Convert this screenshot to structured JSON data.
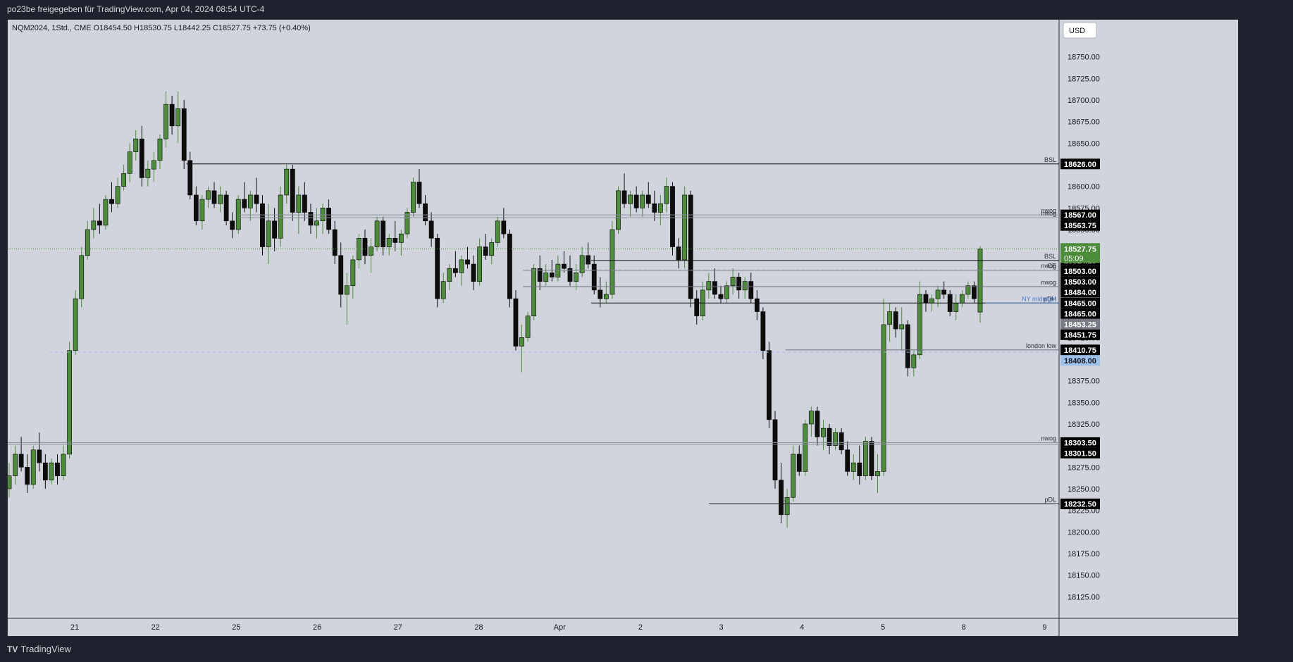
{
  "header": {
    "title": "po23be freigegeben für TradingView.com, Apr 04, 2024 08:54 UTC-4"
  },
  "footer": {
    "brand": "TradingView"
  },
  "chart_data": {
    "type": "candlestick",
    "symbol_line": "NQM2024, 1Std., CME  O18454.50  H18530.75  L18442.25  C18527.75  +73.75 (+0.40%)",
    "currency": "USD",
    "ylim": [
      18100,
      18775
    ],
    "y_ticks": [
      18125,
      18150,
      18175,
      18200,
      18225,
      18250,
      18275,
      18300,
      18325,
      18350,
      18375,
      18400,
      18425,
      18450,
      18475,
      18500,
      18525,
      18550,
      18575,
      18600,
      18625,
      18650,
      18675,
      18700,
      18725,
      18750
    ],
    "x_ticks": [
      "21",
      "22",
      "25",
      "26",
      "27",
      "28",
      "Apr",
      "2",
      "3",
      "4",
      "5",
      "8",
      "9"
    ],
    "colors": {
      "up": "#4c8c3b",
      "down": "#0d0d0d",
      "background": "#d1d4dc",
      "current_price": "#4c8c3b",
      "blue_level": "#9ec1ea"
    },
    "last_price": {
      "value": 18527.75,
      "label": "18527.75",
      "countdown": "05:09"
    },
    "levels": [
      {
        "price": 18626.0,
        "label": "18626.00",
        "tag": "BSL",
        "style": "solid",
        "from": 0.17,
        "to": 1.0
      },
      {
        "price": 18567.0,
        "label": "18567.00",
        "tag": "nwog",
        "style": "grey",
        "from": 0.22,
        "to": 1.0
      },
      {
        "price": 18563.75,
        "label": "18563.75",
        "tag": "nwog",
        "style": "grey",
        "from": 0.22,
        "to": 1.0
      },
      {
        "price": 18514.25,
        "label": "18514.25",
        "tag": "BSL",
        "style": "solid",
        "from": 0.555,
        "to": 1.0
      },
      {
        "price": 18503.0,
        "label": "18503.00",
        "tag": "nwog",
        "style": "greysolid",
        "from": 0.49,
        "to": 1.0
      },
      {
        "price": 18503.0,
        "label": "18503.00",
        "tag": "CE",
        "style": "dash",
        "from": 0.49,
        "to": 1.0
      },
      {
        "price": 18484.0,
        "label": "18484.00",
        "tag": "nwog",
        "style": "greysolid",
        "from": 0.49,
        "to": 1.0
      },
      {
        "price": 18465.0,
        "label": "18465.00",
        "tag": "pDH",
        "style": "solid",
        "from": 0.555,
        "to": 1.0
      },
      {
        "price": 18465.0,
        "label": "18465.00",
        "tag": "NY midnight",
        "style": "blue",
        "from": 0.93,
        "to": 1.0
      },
      {
        "price": 18453.25,
        "label": "18453.25",
        "tag": "",
        "style": "none",
        "from": 0,
        "to": 0
      },
      {
        "price": 18451.75,
        "label": "18451.75",
        "tag": "",
        "style": "none",
        "from": 0,
        "to": 0
      },
      {
        "price": 18410.75,
        "label": "18410.75",
        "tag": "london low",
        "style": "thin",
        "from": 0.74,
        "to": 1.0
      },
      {
        "price": 18408.0,
        "label": "18408.00",
        "tag": "",
        "style": "bluedash",
        "from": 0.04,
        "to": 1.0
      },
      {
        "price": 18303.5,
        "label": "18303.50",
        "tag": "nwog",
        "style": "grey",
        "from": 0.0,
        "to": 1.0
      },
      {
        "price": 18301.5,
        "label": "18301.50",
        "tag": "",
        "style": "grey",
        "from": 0.0,
        "to": 1.0
      },
      {
        "price": 18232.5,
        "label": "18232.50",
        "tag": "pDL",
        "style": "solid",
        "from": 0.667,
        "to": 1.0
      }
    ],
    "candles": [
      [
        18250,
        18280,
        18240,
        18265
      ],
      [
        18265,
        18300,
        18255,
        18290
      ],
      [
        18290,
        18310,
        18270,
        18275
      ],
      [
        18275,
        18290,
        18245,
        18255
      ],
      [
        18255,
        18300,
        18250,
        18295
      ],
      [
        18295,
        18315,
        18270,
        18280
      ],
      [
        18280,
        18290,
        18250,
        18260
      ],
      [
        18260,
        18285,
        18255,
        18280
      ],
      [
        18280,
        18290,
        18255,
        18265
      ],
      [
        18265,
        18300,
        18260,
        18290
      ],
      [
        18290,
        18420,
        18285,
        18410
      ],
      [
        18410,
        18480,
        18405,
        18470
      ],
      [
        18470,
        18530,
        18460,
        18520
      ],
      [
        18520,
        18560,
        18515,
        18550
      ],
      [
        18550,
        18575,
        18540,
        18560
      ],
      [
        18560,
        18580,
        18545,
        18555
      ],
      [
        18555,
        18590,
        18550,
        18585
      ],
      [
        18585,
        18605,
        18570,
        18580
      ],
      [
        18580,
        18610,
        18575,
        18600
      ],
      [
        18600,
        18625,
        18595,
        18615
      ],
      [
        18615,
        18650,
        18605,
        18640
      ],
      [
        18640,
        18665,
        18630,
        18655
      ],
      [
        18655,
        18670,
        18600,
        18610
      ],
      [
        18610,
        18630,
        18600,
        18620
      ],
      [
        18620,
        18640,
        18605,
        18630
      ],
      [
        18630,
        18660,
        18620,
        18655
      ],
      [
        18655,
        18710,
        18645,
        18695
      ],
      [
        18695,
        18705,
        18660,
        18670
      ],
      [
        18670,
        18710,
        18650,
        18690
      ],
      [
        18690,
        18700,
        18620,
        18630
      ],
      [
        18630,
        18640,
        18585,
        18590
      ],
      [
        18590,
        18600,
        18555,
        18560
      ],
      [
        18560,
        18590,
        18550,
        18585
      ],
      [
        18585,
        18600,
        18575,
        18595
      ],
      [
        18595,
        18605,
        18575,
        18580
      ],
      [
        18580,
        18600,
        18570,
        18590
      ],
      [
        18590,
        18595,
        18555,
        18560
      ],
      [
        18560,
        18570,
        18540,
        18550
      ],
      [
        18550,
        18590,
        18545,
        18585
      ],
      [
        18585,
        18605,
        18570,
        18575
      ],
      [
        18575,
        18595,
        18560,
        18590
      ],
      [
        18590,
        18610,
        18570,
        18580
      ],
      [
        18580,
        18590,
        18520,
        18530
      ],
      [
        18530,
        18580,
        18510,
        18560
      ],
      [
        18560,
        18575,
        18525,
        18540
      ],
      [
        18540,
        18600,
        18530,
        18590
      ],
      [
        18590,
        18625,
        18580,
        18620
      ],
      [
        18620,
        18625,
        18560,
        18570
      ],
      [
        18570,
        18600,
        18545,
        18590
      ],
      [
        18590,
        18605,
        18560,
        18570
      ],
      [
        18570,
        18580,
        18545,
        18555
      ],
      [
        18555,
        18575,
        18540,
        18560
      ],
      [
        18560,
        18580,
        18545,
        18575
      ],
      [
        18575,
        18585,
        18545,
        18550
      ],
      [
        18550,
        18560,
        18510,
        18520
      ],
      [
        18520,
        18535,
        18460,
        18475
      ],
      [
        18475,
        18500,
        18440,
        18485
      ],
      [
        18485,
        18520,
        18470,
        18515
      ],
      [
        18515,
        18545,
        18505,
        18540
      ],
      [
        18540,
        18550,
        18510,
        18520
      ],
      [
        18520,
        18540,
        18500,
        18530
      ],
      [
        18530,
        18565,
        18525,
        18560
      ],
      [
        18560,
        18565,
        18520,
        18530
      ],
      [
        18530,
        18545,
        18520,
        18540
      ],
      [
        18540,
        18560,
        18525,
        18535
      ],
      [
        18535,
        18550,
        18520,
        18545
      ],
      [
        18545,
        18575,
        18540,
        18570
      ],
      [
        18570,
        18610,
        18565,
        18605
      ],
      [
        18605,
        18620,
        18575,
        18580
      ],
      [
        18580,
        18590,
        18555,
        18560
      ],
      [
        18560,
        18570,
        18530,
        18540
      ],
      [
        18540,
        18545,
        18460,
        18470
      ],
      [
        18470,
        18500,
        18465,
        18490
      ],
      [
        18490,
        18510,
        18480,
        18505
      ],
      [
        18505,
        18525,
        18495,
        18500
      ],
      [
        18500,
        18520,
        18485,
        18515
      ],
      [
        18515,
        18530,
        18505,
        18510
      ],
      [
        18510,
        18520,
        18480,
        18490
      ],
      [
        18490,
        18540,
        18485,
        18530
      ],
      [
        18530,
        18545,
        18515,
        18520
      ],
      [
        18520,
        18540,
        18510,
        18535
      ],
      [
        18535,
        18565,
        18530,
        18560
      ],
      [
        18560,
        18575,
        18540,
        18545
      ],
      [
        18545,
        18550,
        18460,
        18470
      ],
      [
        18470,
        18480,
        18410,
        18415
      ],
      [
        18415,
        18440,
        18385,
        18425
      ],
      [
        18425,
        18455,
        18420,
        18450
      ],
      [
        18450,
        18510,
        18445,
        18505
      ],
      [
        18505,
        18520,
        18480,
        18490
      ],
      [
        18490,
        18510,
        18485,
        18500
      ],
      [
        18500,
        18515,
        18490,
        18495
      ],
      [
        18495,
        18520,
        18490,
        18510
      ],
      [
        18510,
        18525,
        18500,
        18505
      ],
      [
        18505,
        18520,
        18485,
        18490
      ],
      [
        18490,
        18510,
        18480,
        18500
      ],
      [
        18500,
        18530,
        18495,
        18520
      ],
      [
        18520,
        18535,
        18505,
        18510
      ],
      [
        18510,
        18520,
        18475,
        18480
      ],
      [
        18480,
        18495,
        18460,
        18470
      ],
      [
        18470,
        18490,
        18465,
        18475
      ],
      [
        18475,
        18560,
        18470,
        18550
      ],
      [
        18550,
        18600,
        18545,
        18595
      ],
      [
        18595,
        18615,
        18575,
        18580
      ],
      [
        18580,
        18595,
        18565,
        18590
      ],
      [
        18590,
        18600,
        18570,
        18575
      ],
      [
        18575,
        18595,
        18565,
        18590
      ],
      [
        18590,
        18605,
        18575,
        18580
      ],
      [
        18580,
        18595,
        18560,
        18570
      ],
      [
        18570,
        18590,
        18555,
        18580
      ],
      [
        18580,
        18610,
        18570,
        18600
      ],
      [
        18600,
        18605,
        18520,
        18530
      ],
      [
        18530,
        18540,
        18505,
        18515
      ],
      [
        18515,
        18600,
        18505,
        18590
      ],
      [
        18590,
        18595,
        18460,
        18470
      ],
      [
        18470,
        18480,
        18440,
        18450
      ],
      [
        18450,
        18490,
        18445,
        18480
      ],
      [
        18480,
        18500,
        18470,
        18490
      ],
      [
        18490,
        18505,
        18470,
        18475
      ],
      [
        18475,
        18485,
        18465,
        18470
      ],
      [
        18470,
        18490,
        18465,
        18485
      ],
      [
        18485,
        18505,
        18475,
        18495
      ],
      [
        18495,
        18500,
        18470,
        18480
      ],
      [
        18480,
        18495,
        18470,
        18490
      ],
      [
        18490,
        18500,
        18465,
        18470
      ],
      [
        18470,
        18480,
        18445,
        18455
      ],
      [
        18455,
        18460,
        18400,
        18410
      ],
      [
        18410,
        18420,
        18320,
        18330
      ],
      [
        18330,
        18340,
        18250,
        18260
      ],
      [
        18260,
        18280,
        18210,
        18220
      ],
      [
        18220,
        18250,
        18205,
        18240
      ],
      [
        18240,
        18300,
        18235,
        18290
      ],
      [
        18290,
        18300,
        18265,
        18270
      ],
      [
        18270,
        18330,
        18265,
        18325
      ],
      [
        18325,
        18345,
        18310,
        18340
      ],
      [
        18340,
        18345,
        18300,
        18310
      ],
      [
        18310,
        18330,
        18295,
        18320
      ],
      [
        18320,
        18325,
        18290,
        18300
      ],
      [
        18300,
        18320,
        18295,
        18315
      ],
      [
        18315,
        18320,
        18290,
        18295
      ],
      [
        18295,
        18305,
        18265,
        18270
      ],
      [
        18270,
        18290,
        18260,
        18280
      ],
      [
        18280,
        18300,
        18255,
        18265
      ],
      [
        18265,
        18310,
        18260,
        18305
      ],
      [
        18305,
        18310,
        18260,
        18265
      ],
      [
        18265,
        18290,
        18245,
        18270
      ],
      [
        18270,
        18470,
        18265,
        18440
      ],
      [
        18440,
        18465,
        18420,
        18455
      ],
      [
        18455,
        18460,
        18425,
        18435
      ],
      [
        18435,
        18460,
        18410,
        18440
      ],
      [
        18440,
        18445,
        18380,
        18390
      ],
      [
        18390,
        18410,
        18380,
        18405
      ],
      [
        18405,
        18490,
        18400,
        18475
      ],
      [
        18475,
        18480,
        18455,
        18465
      ],
      [
        18465,
        18475,
        18455,
        18470
      ],
      [
        18470,
        18485,
        18460,
        18480
      ],
      [
        18480,
        18490,
        18470,
        18475
      ],
      [
        18475,
        18480,
        18450,
        18455
      ],
      [
        18455,
        18475,
        18445,
        18465
      ],
      [
        18465,
        18480,
        18460,
        18475
      ],
      [
        18475,
        18490,
        18470,
        18485
      ],
      [
        18485,
        18490,
        18465,
        18470
      ],
      [
        18454.5,
        18530.75,
        18442.25,
        18527.75
      ]
    ]
  }
}
